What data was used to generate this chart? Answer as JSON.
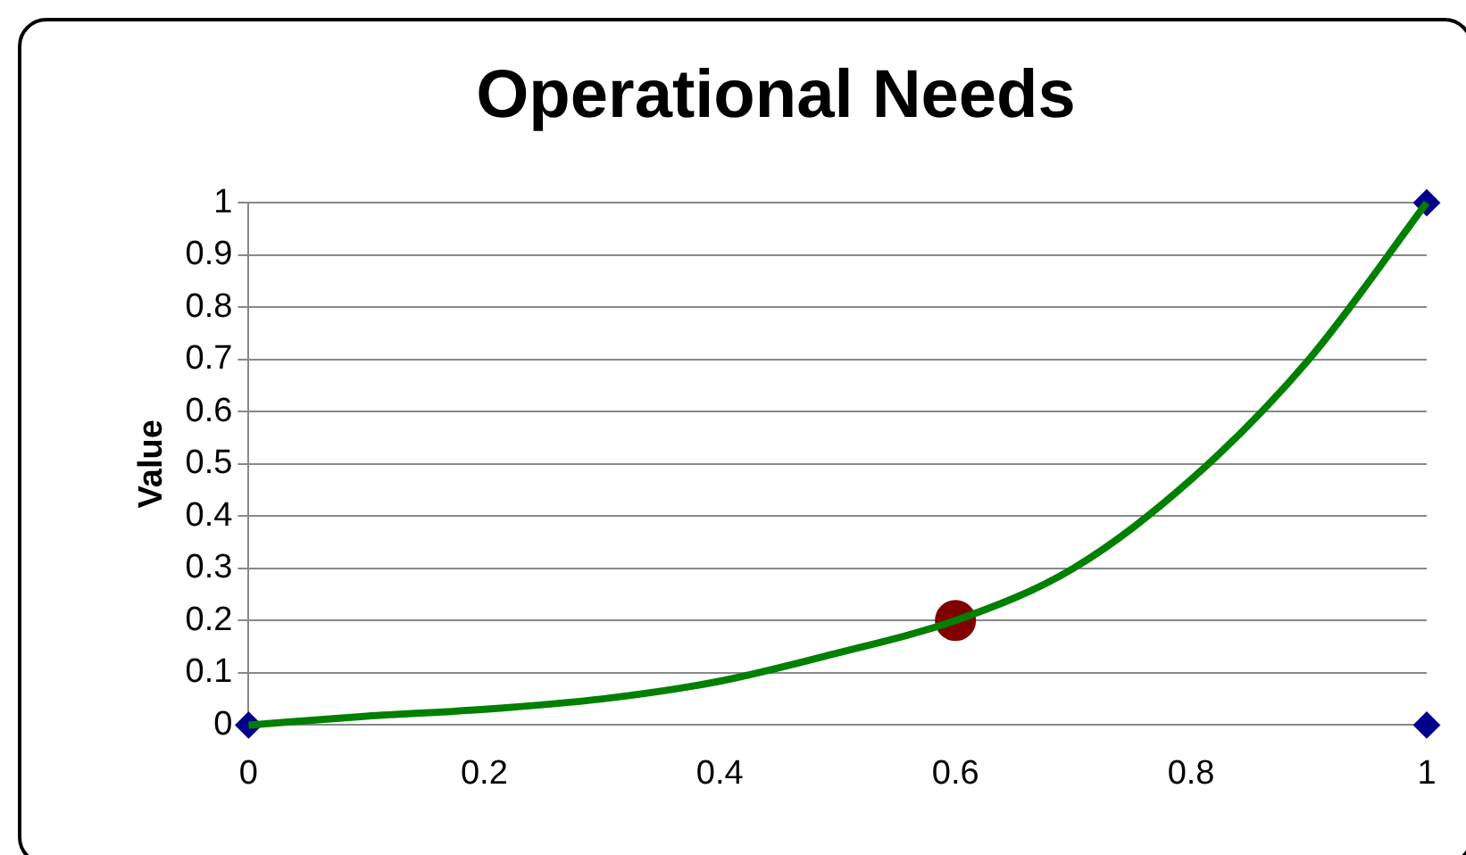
{
  "chart_data": {
    "type": "line",
    "title": "Operational Needs",
    "ylabel": "Value",
    "xlim": [
      0,
      1
    ],
    "xticks": [
      0,
      0.2,
      0.4,
      0.6,
      0.8,
      1
    ],
    "ylim": [
      0,
      1
    ],
    "yticks": [
      0,
      0.1,
      0.2,
      0.3,
      0.4,
      0.5,
      0.6,
      0.7,
      0.8,
      0.9,
      1
    ],
    "grid": "y",
    "legend": false,
    "series": [
      {
        "color": "#008000",
        "marker": "none",
        "line_style": "solid",
        "x": [
          0,
          0.1,
          0.2,
          0.3,
          0.4,
          0.5,
          0.6,
          0.7,
          0.8,
          0.9,
          1
        ],
        "values": [
          0,
          0.017,
          0.03,
          0.05,
          0.084,
          0.138,
          0.2,
          0.3,
          0.47,
          0.7,
          1
        ]
      },
      {
        "type": "scatter",
        "color": "#00008b",
        "marker": "diamond",
        "x": [
          0,
          1,
          1
        ],
        "values": [
          0,
          1,
          0
        ]
      },
      {
        "type": "scatter",
        "color": "#800000",
        "marker": "circle",
        "x": [
          0.6
        ],
        "values": [
          0.2
        ]
      }
    ]
  }
}
